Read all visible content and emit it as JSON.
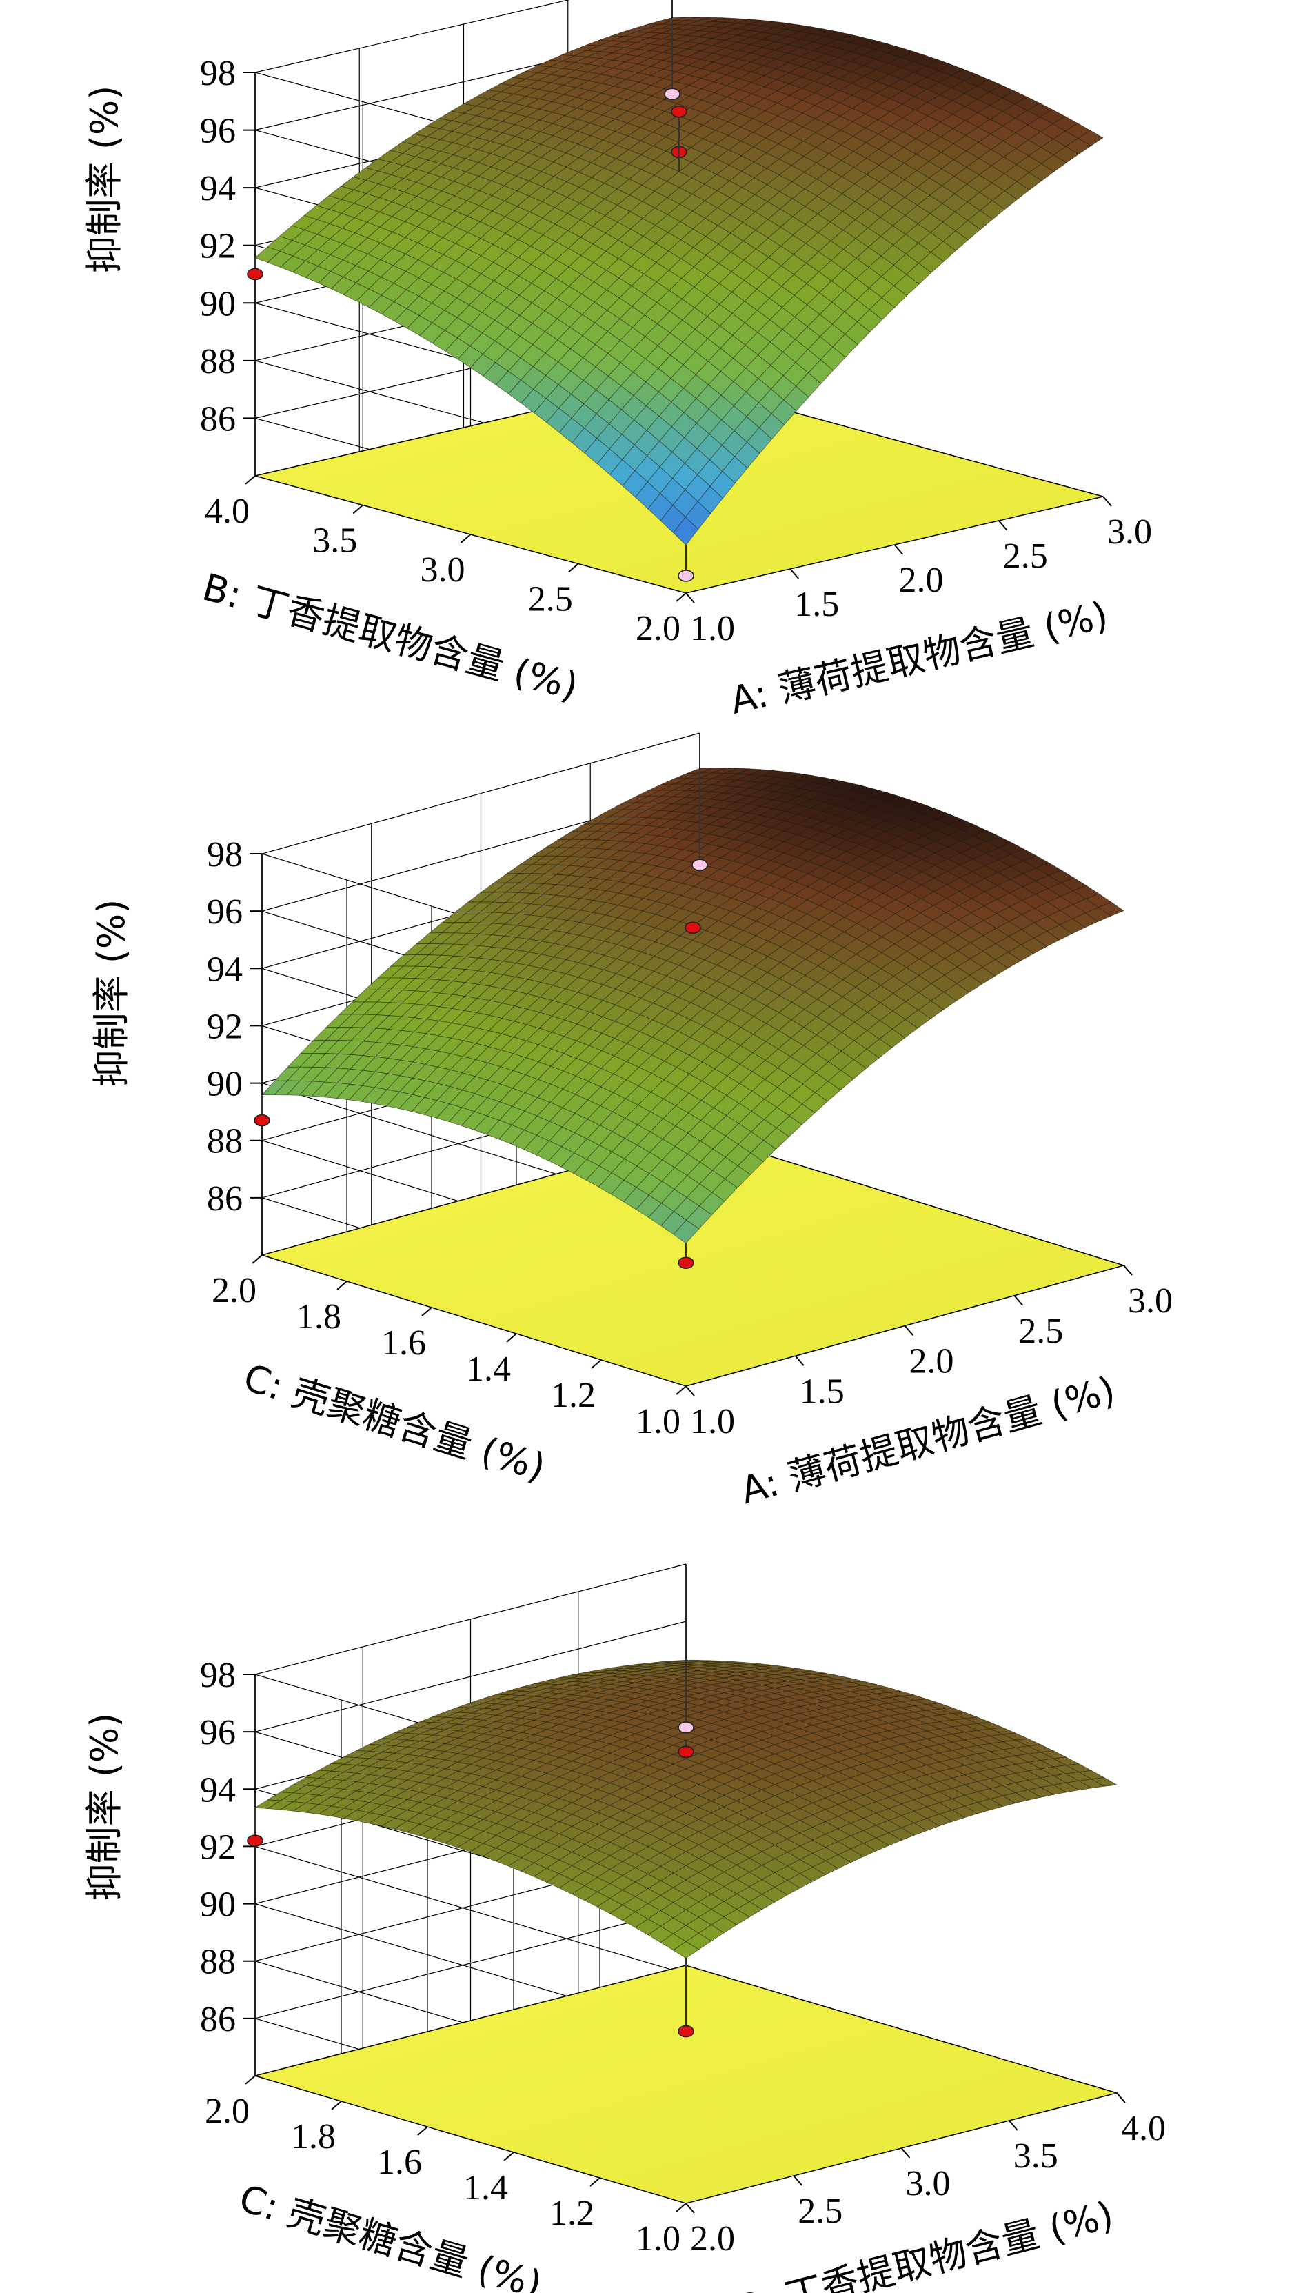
{
  "chart_data": [
    {
      "type": "surface3d",
      "zlabel": "抑制率 (%)",
      "zticks": [
        "98",
        "96",
        "94",
        "92",
        "90",
        "88",
        "86"
      ],
      "xlabel": "A: 薄荷提取物含量 (%)",
      "xticks": [
        "1.0",
        "1.5",
        "2.0",
        "2.5",
        "3.0"
      ],
      "xrange": [
        1.0,
        3.0
      ],
      "ylabel": "B: 丁香提取物含量 (%)",
      "yticks": [
        "4.0",
        "3.5",
        "3.0",
        "2.5",
        "2.0"
      ],
      "yrange": [
        2.0,
        4.0
      ],
      "zrange": [
        84,
        98
      ],
      "surface_corners": {
        "x_low_y_high": 90.8,
        "x_low_y_low": 84.9,
        "x_high_y_low": 93.8,
        "x_high_y_high": 93.9
      },
      "surface_peak": {
        "x": 2.4,
        "y": 3.0,
        "z": 96.3
      },
      "design_points": [
        {
          "x": 1.0,
          "y": 4.0,
          "z": 91.0,
          "type": "above"
        },
        {
          "x": 1.0,
          "y": 2.0,
          "z": 84.6,
          "type": "below"
        },
        {
          "x": 3.0,
          "y": 4.0,
          "z": 93.9,
          "type": "below"
        },
        {
          "x": 2.0,
          "y": 3.0,
          "z": 95.6,
          "type": "above"
        },
        {
          "x": 2.0,
          "y": 3.0,
          "z": 97.0,
          "type": "above"
        }
      ]
    },
    {
      "type": "surface3d",
      "zlabel": "抑制率 (%)",
      "zticks": [
        "98",
        "96",
        "94",
        "92",
        "90",
        "88",
        "86"
      ],
      "xlabel": "A: 薄荷提取物含量 (%)",
      "xticks": [
        "1.0",
        "1.5",
        "2.0",
        "2.5",
        "3.0"
      ],
      "xrange": [
        1.0,
        3.0
      ],
      "ylabel": "C: 壳聚糖含量 (%)",
      "yticks": [
        "2.0",
        "1.8",
        "1.6",
        "1.4",
        "1.2",
        "1.0"
      ],
      "yrange": [
        1.0,
        2.0
      ],
      "zrange": [
        84,
        98
      ],
      "surface_corners": {
        "x_low_y_high": 88.7,
        "x_low_y_low": 88.1,
        "x_high_y_low": 93.3,
        "x_high_y_high": 93.7
      },
      "surface_peak": {
        "x": 2.4,
        "y": 1.5,
        "z": 96.9
      },
      "design_points": [
        {
          "x": 1.0,
          "y": 2.0,
          "z": 88.7,
          "type": "above"
        },
        {
          "x": 1.0,
          "y": 1.0,
          "z": 88.3,
          "type": "above"
        },
        {
          "x": 3.0,
          "y": 2.0,
          "z": 93.4,
          "type": "below"
        },
        {
          "x": 2.0,
          "y": 1.5,
          "z": 95.6,
          "type": "above"
        }
      ]
    },
    {
      "type": "surface3d",
      "zlabel": "抑制率 (%)",
      "zticks": [
        "98",
        "96",
        "94",
        "92",
        "90",
        "88",
        "86"
      ],
      "xlabel": "B: 丁香提取物含量 (%)",
      "xticks": [
        "2.0",
        "2.5",
        "3.0",
        "3.5",
        "4.0"
      ],
      "xrange": [
        2.0,
        4.0
      ],
      "ylabel": "C: 壳聚糖含量 (%)",
      "yticks": [
        "2.0",
        "1.8",
        "1.6",
        "1.4",
        "1.2",
        "1.0"
      ],
      "yrange": [
        1.0,
        2.0
      ],
      "zrange": [
        84,
        98
      ],
      "surface_corners": {
        "x_low_y_high": 91.6,
        "x_low_y_low": 90.8,
        "x_high_y_low": 93.0,
        "x_high_y_high": 92.9
      },
      "surface_peak": {
        "x": 3.0,
        "y": 1.5,
        "z": 96.0
      },
      "design_points": [
        {
          "x": 2.0,
          "y": 2.0,
          "z": 92.2,
          "type": "above"
        },
        {
          "x": 2.0,
          "y": 1.0,
          "z": 90.0,
          "type": "above"
        },
        {
          "x": 4.0,
          "y": 2.0,
          "z": 92.3,
          "type": "below"
        },
        {
          "x": 3.0,
          "y": 1.5,
          "z": 95.6,
          "type": "above"
        }
      ]
    }
  ]
}
